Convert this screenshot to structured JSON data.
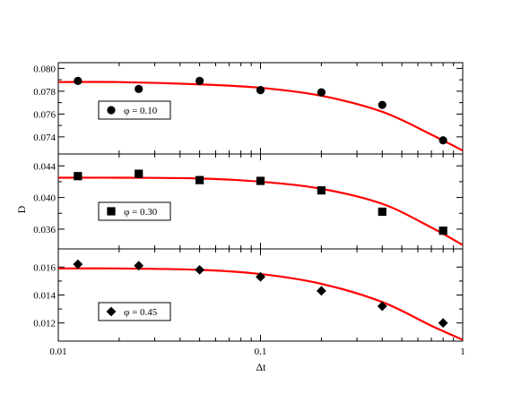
{
  "chart_data": {
    "type": "scatter",
    "shared_x": {
      "label": "Δt",
      "scale": "log",
      "range": [
        0.01,
        1
      ],
      "ticks": [
        0.01,
        0.1,
        1
      ],
      "tick_labels": [
        "0.01",
        "0.1",
        "1"
      ]
    },
    "ylabel": "D",
    "panels": [
      {
        "legend": "φ = 0.10",
        "marker": "circle",
        "ylim": [
          0.0725,
          0.0805
        ],
        "yticks": [
          0.074,
          0.076,
          0.078,
          0.08
        ],
        "ytick_labels": [
          "0.074",
          "0.076",
          "0.078",
          "0.080"
        ],
        "points": [
          {
            "x": 0.0125,
            "y": 0.0789
          },
          {
            "x": 0.025,
            "y": 0.0782
          },
          {
            "x": 0.05,
            "y": 0.0789
          },
          {
            "x": 0.1,
            "y": 0.0781
          },
          {
            "x": 0.2,
            "y": 0.0779
          },
          {
            "x": 0.4,
            "y": 0.0768
          },
          {
            "x": 0.8,
            "y": 0.0737
          }
        ],
        "fit": [
          {
            "x": 0.01,
            "y": 0.0788
          },
          {
            "x": 0.02,
            "y": 0.0788
          },
          {
            "x": 0.05,
            "y": 0.0786
          },
          {
            "x": 0.1,
            "y": 0.0783
          },
          {
            "x": 0.2,
            "y": 0.0776
          },
          {
            "x": 0.4,
            "y": 0.0762
          },
          {
            "x": 0.7,
            "y": 0.0742
          },
          {
            "x": 1.0,
            "y": 0.0728
          }
        ]
      },
      {
        "legend": "φ = 0.30",
        "marker": "square",
        "ylim": [
          0.0335,
          0.0455
        ],
        "yticks": [
          0.036,
          0.04,
          0.044
        ],
        "ytick_labels": [
          "0.036",
          "0.040",
          "0.044"
        ],
        "points": [
          {
            "x": 0.0125,
            "y": 0.0427
          },
          {
            "x": 0.025,
            "y": 0.043
          },
          {
            "x": 0.05,
            "y": 0.0422
          },
          {
            "x": 0.1,
            "y": 0.0421
          },
          {
            "x": 0.2,
            "y": 0.0409
          },
          {
            "x": 0.4,
            "y": 0.0382
          },
          {
            "x": 0.8,
            "y": 0.0358
          }
        ],
        "fit": [
          {
            "x": 0.01,
            "y": 0.0425
          },
          {
            "x": 0.02,
            "y": 0.0425
          },
          {
            "x": 0.05,
            "y": 0.0424
          },
          {
            "x": 0.1,
            "y": 0.042
          },
          {
            "x": 0.2,
            "y": 0.0411
          },
          {
            "x": 0.4,
            "y": 0.0392
          },
          {
            "x": 0.7,
            "y": 0.0362
          },
          {
            "x": 1.0,
            "y": 0.034
          }
        ]
      },
      {
        "legend": "φ = 0.45",
        "marker": "diamond",
        "ylim": [
          0.0107,
          0.0173
        ],
        "yticks": [
          0.012,
          0.014,
          0.016
        ],
        "ytick_labels": [
          "0.012",
          "0.014",
          "0.016"
        ],
        "points": [
          {
            "x": 0.0125,
            "y": 0.0162
          },
          {
            "x": 0.025,
            "y": 0.0161
          },
          {
            "x": 0.05,
            "y": 0.0158
          },
          {
            "x": 0.1,
            "y": 0.0153
          },
          {
            "x": 0.2,
            "y": 0.0143
          },
          {
            "x": 0.4,
            "y": 0.0132
          },
          {
            "x": 0.8,
            "y": 0.012
          }
        ],
        "fit": [
          {
            "x": 0.01,
            "y": 0.0159
          },
          {
            "x": 0.02,
            "y": 0.0159
          },
          {
            "x": 0.05,
            "y": 0.0158
          },
          {
            "x": 0.1,
            "y": 0.0155
          },
          {
            "x": 0.2,
            "y": 0.0148
          },
          {
            "x": 0.4,
            "y": 0.0135
          },
          {
            "x": 0.7,
            "y": 0.0118
          },
          {
            "x": 1.0,
            "y": 0.0108
          }
        ]
      }
    ],
    "colors": {
      "fit_line": "#ff0000",
      "markers": "#000000",
      "axes": "#000000"
    },
    "grid": false
  }
}
